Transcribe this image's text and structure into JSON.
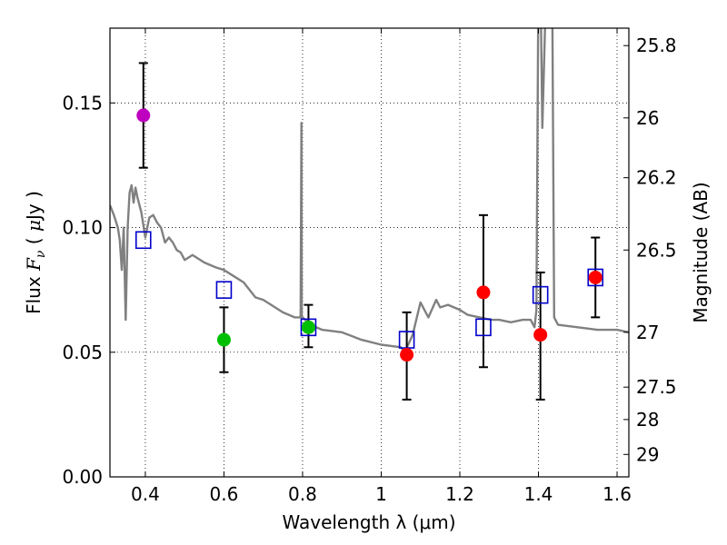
{
  "chart_data": {
    "type": "scatter",
    "xlabel": "Wavelength  λ (μm)",
    "ylabel": "Flux  F_ν  ( μJy )",
    "y2label": "Magnitude (AB)",
    "xlim": [
      0.31,
      1.63
    ],
    "ylim": [
      0.0,
      0.18
    ],
    "grid": true,
    "x_ticks": [
      0.4,
      0.6,
      0.8,
      1.0,
      1.2,
      1.4,
      1.6
    ],
    "x_tick_labels": [
      "0.4",
      "0.6",
      "0.8",
      "1",
      "1.2",
      "1.4",
      "1.6"
    ],
    "y_ticks": [
      0.0,
      0.05,
      0.1,
      0.15
    ],
    "y_tick_labels": [
      "0.00",
      "0.05",
      "0.10",
      "0.15"
    ],
    "y2_ticks": [
      {
        "label": "25.8",
        "flux": 0.173
      },
      {
        "label": "26",
        "flux": 0.144
      },
      {
        "label": "26.2",
        "flux": 0.12
      },
      {
        "label": "26.5",
        "flux": 0.091
      },
      {
        "label": "27",
        "flux": 0.058
      },
      {
        "label": "27.5",
        "flux": 0.036
      },
      {
        "label": "28",
        "flux": 0.023
      },
      {
        "label": "29",
        "flux": 0.009
      }
    ],
    "series": [
      {
        "name": "model-spectrum",
        "kind": "line",
        "color": "#808080",
        "x": [
          0.31,
          0.32,
          0.33,
          0.335,
          0.34,
          0.345,
          0.35,
          0.355,
          0.36,
          0.365,
          0.37,
          0.375,
          0.38,
          0.39,
          0.4,
          0.41,
          0.42,
          0.43,
          0.44,
          0.45,
          0.46,
          0.47,
          0.48,
          0.49,
          0.5,
          0.52,
          0.55,
          0.58,
          0.6,
          0.62,
          0.65,
          0.68,
          0.7,
          0.72,
          0.75,
          0.78,
          0.795,
          0.797,
          0.798,
          0.799,
          0.8,
          0.82,
          0.85,
          0.9,
          0.95,
          1.0,
          1.05,
          1.06,
          1.08,
          1.1,
          1.12,
          1.14,
          1.15,
          1.17,
          1.2,
          1.22,
          1.25,
          1.28,
          1.3,
          1.33,
          1.36,
          1.38,
          1.39,
          1.395,
          1.4,
          1.405,
          1.41,
          1.42,
          1.43,
          1.435,
          1.44,
          1.45,
          1.5,
          1.55,
          1.6,
          1.63
        ],
        "y": [
          0.109,
          0.105,
          0.1,
          0.095,
          0.083,
          0.1,
          0.063,
          0.1,
          0.114,
          0.117,
          0.11,
          0.116,
          0.112,
          0.106,
          0.096,
          0.104,
          0.105,
          0.102,
          0.1,
          0.094,
          0.096,
          0.094,
          0.091,
          0.09,
          0.087,
          0.089,
          0.086,
          0.084,
          0.083,
          0.081,
          0.078,
          0.072,
          0.071,
          0.069,
          0.066,
          0.064,
          0.064,
          0.142,
          0.064,
          0.064,
          0.064,
          0.061,
          0.059,
          0.058,
          0.055,
          0.053,
          0.052,
          0.05,
          0.057,
          0.07,
          0.064,
          0.071,
          0.068,
          0.069,
          0.067,
          0.065,
          0.064,
          0.063,
          0.063,
          0.062,
          0.063,
          0.063,
          0.06,
          0.067,
          0.2,
          0.2,
          0.14,
          0.2,
          0.2,
          0.2,
          0.064,
          0.061,
          0.06,
          0.059,
          0.059,
          0.058
        ]
      },
      {
        "name": "model-bands",
        "kind": "open-square",
        "color": "#0000cc",
        "x": [
          0.395,
          0.6,
          0.815,
          1.065,
          1.26,
          1.405,
          1.545
        ],
        "y": [
          0.095,
          0.075,
          0.06,
          0.055,
          0.06,
          0.073,
          0.08
        ]
      },
      {
        "name": "obs-purple",
        "kind": "filled-circle",
        "color": "#bf00bf",
        "x": [
          0.395
        ],
        "y": [
          0.145
        ],
        "yerr_low": [
          0.124
        ],
        "yerr_high": [
          0.166
        ]
      },
      {
        "name": "obs-green",
        "kind": "filled-circle",
        "color": "#00bf00",
        "x": [
          0.6,
          0.815
        ],
        "y": [
          0.055,
          0.06
        ],
        "yerr_low": [
          0.042,
          0.052
        ],
        "yerr_high": [
          0.068,
          0.069
        ]
      },
      {
        "name": "obs-red",
        "kind": "filled-circle",
        "color": "#ff0000",
        "x": [
          1.065,
          1.26,
          1.405,
          1.545
        ],
        "y": [
          0.049,
          0.074,
          0.057,
          0.08
        ],
        "yerr_low": [
          0.031,
          0.044,
          0.031,
          0.064
        ],
        "yerr_high": [
          0.066,
          0.105,
          0.082,
          0.096
        ]
      }
    ]
  }
}
